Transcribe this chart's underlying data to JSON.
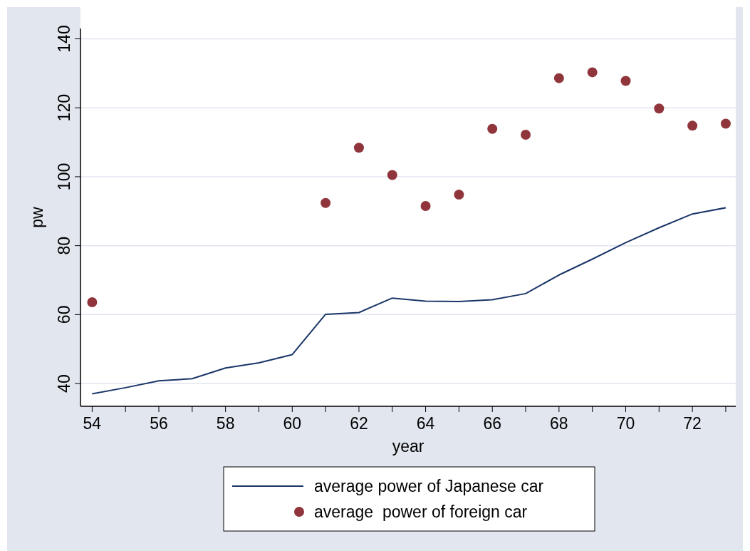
{
  "chart_data": {
    "type": "line",
    "xlabel": "year",
    "ylabel": "pw",
    "x": [
      54,
      55,
      56,
      57,
      58,
      59,
      60,
      61,
      62,
      63,
      64,
      65,
      66,
      67,
      68,
      69,
      70,
      71,
      72,
      73
    ],
    "xlim": [
      53.65,
      73.3
    ],
    "xticks": [
      54,
      {
        "value": 55,
        "label": null
      },
      56,
      {
        "value": 57,
        "label": null
      },
      58,
      {
        "value": 59,
        "label": null
      },
      60,
      {
        "value": 61,
        "label": null
      },
      62,
      {
        "value": 63,
        "label": null
      },
      64,
      {
        "value": 65,
        "label": null
      },
      66,
      {
        "value": 67,
        "label": null
      },
      68,
      {
        "value": 69,
        "label": null
      },
      70,
      {
        "value": 71,
        "label": null
      },
      72,
      {
        "value": 73,
        "label": null
      }
    ],
    "ylim": [
      33.4,
      143
    ],
    "yticks": [
      40,
      60,
      80,
      100,
      120,
      140
    ],
    "grid": "y",
    "legend": "bottom",
    "series": [
      {
        "name": "average power of Japanese car",
        "color": "#1a3668",
        "values": [
          37.0,
          38.8,
          40.8,
          41.4,
          44.5,
          46.0,
          48.4,
          60.1,
          60.6,
          64.8,
          63.9,
          63.8,
          64.3,
          66.1,
          71.5,
          76.1,
          80.9,
          85.2,
          89.2,
          91.0
        ]
      },
      {
        "name": "average  power of foreign car",
        "type": "scatter",
        "color": "#90353b",
        "values": [
          63.6,
          null,
          null,
          null,
          null,
          null,
          null,
          92.4,
          108.4,
          100.5,
          91.5,
          94.8,
          113.9,
          112.2,
          128.6,
          130.3,
          127.8,
          119.8,
          114.8,
          115.4
        ]
      }
    ]
  }
}
